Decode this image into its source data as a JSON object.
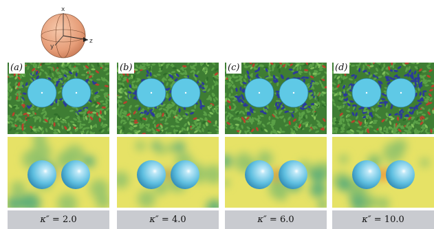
{
  "inset": {
    "axis_x": "x",
    "axis_y": "y",
    "axis_z": "z"
  },
  "panels": [
    {
      "tag": "(a)",
      "kappa_symbol": "κ″",
      "kappa_value": "2.0"
    },
    {
      "tag": "(b)",
      "kappa_symbol": "κ″",
      "kappa_value": "4.0"
    },
    {
      "tag": "(c)",
      "kappa_symbol": "κ″",
      "kappa_value": "6.0"
    },
    {
      "tag": "(d)",
      "kappa_symbol": "κ″",
      "kappa_value": "10.0"
    }
  ],
  "colors": {
    "field_green": "#5aa046",
    "field_yellow": "#e6e266",
    "colloid_cyan": "#5fc9e6",
    "defect_blue": "#2b3a9a",
    "defect_red": "#b9412c",
    "caption_gray": "#c9cbd0",
    "inset_sphere": "#e8a27c"
  }
}
